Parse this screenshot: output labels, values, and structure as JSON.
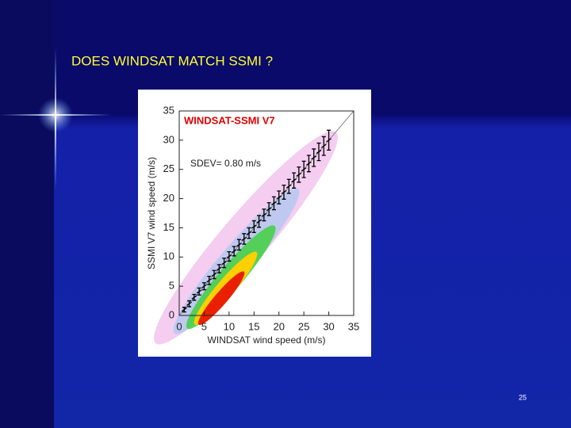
{
  "slide": {
    "title": "DOES WINDSAT MATCH SSMI ?",
    "page_number": "25"
  },
  "chart_data": {
    "type": "scatter",
    "title": "WINDSAT-SSMI V7",
    "annotation": "SDEV= 0.80 m/s",
    "x_label": "WINDSAT wind speed (m/s)",
    "y_label": "SSMI V7 wind speed (m/s)",
    "x": [
      1,
      2,
      3,
      4,
      5,
      6,
      7,
      8,
      9,
      10,
      11,
      12,
      13,
      14,
      15,
      16,
      17,
      18,
      19,
      20,
      21,
      22,
      23,
      24,
      25,
      26,
      27,
      28,
      29,
      30
    ],
    "values": [
      1.0,
      2.0,
      3.1,
      4.1,
      5.0,
      6.0,
      7.0,
      8.0,
      9.0,
      10.1,
      11.0,
      12.1,
      13.1,
      14.1,
      15.2,
      16.1,
      17.2,
      18.2,
      19.2,
      20.2,
      21.1,
      22.1,
      23.1,
      24.1,
      25.0,
      26.0,
      27.0,
      28.0,
      29.0,
      30.0
    ],
    "errors": [
      0.4,
      0.5,
      0.5,
      0.6,
      0.6,
      0.7,
      0.7,
      0.7,
      0.8,
      0.8,
      0.8,
      0.9,
      0.9,
      0.9,
      1.0,
      1.0,
      1.0,
      1.1,
      1.1,
      1.1,
      1.2,
      1.2,
      1.3,
      1.3,
      1.4,
      1.4,
      1.5,
      1.5,
      1.6,
      1.7
    ],
    "color": "#000000",
    "xlim": [
      0,
      35
    ],
    "ylim": [
      0,
      35
    ],
    "xticks": [
      0,
      5,
      10,
      15,
      20,
      25,
      30,
      35
    ],
    "yticks": [
      0,
      5,
      10,
      15,
      20,
      25,
      30,
      35
    ]
  }
}
